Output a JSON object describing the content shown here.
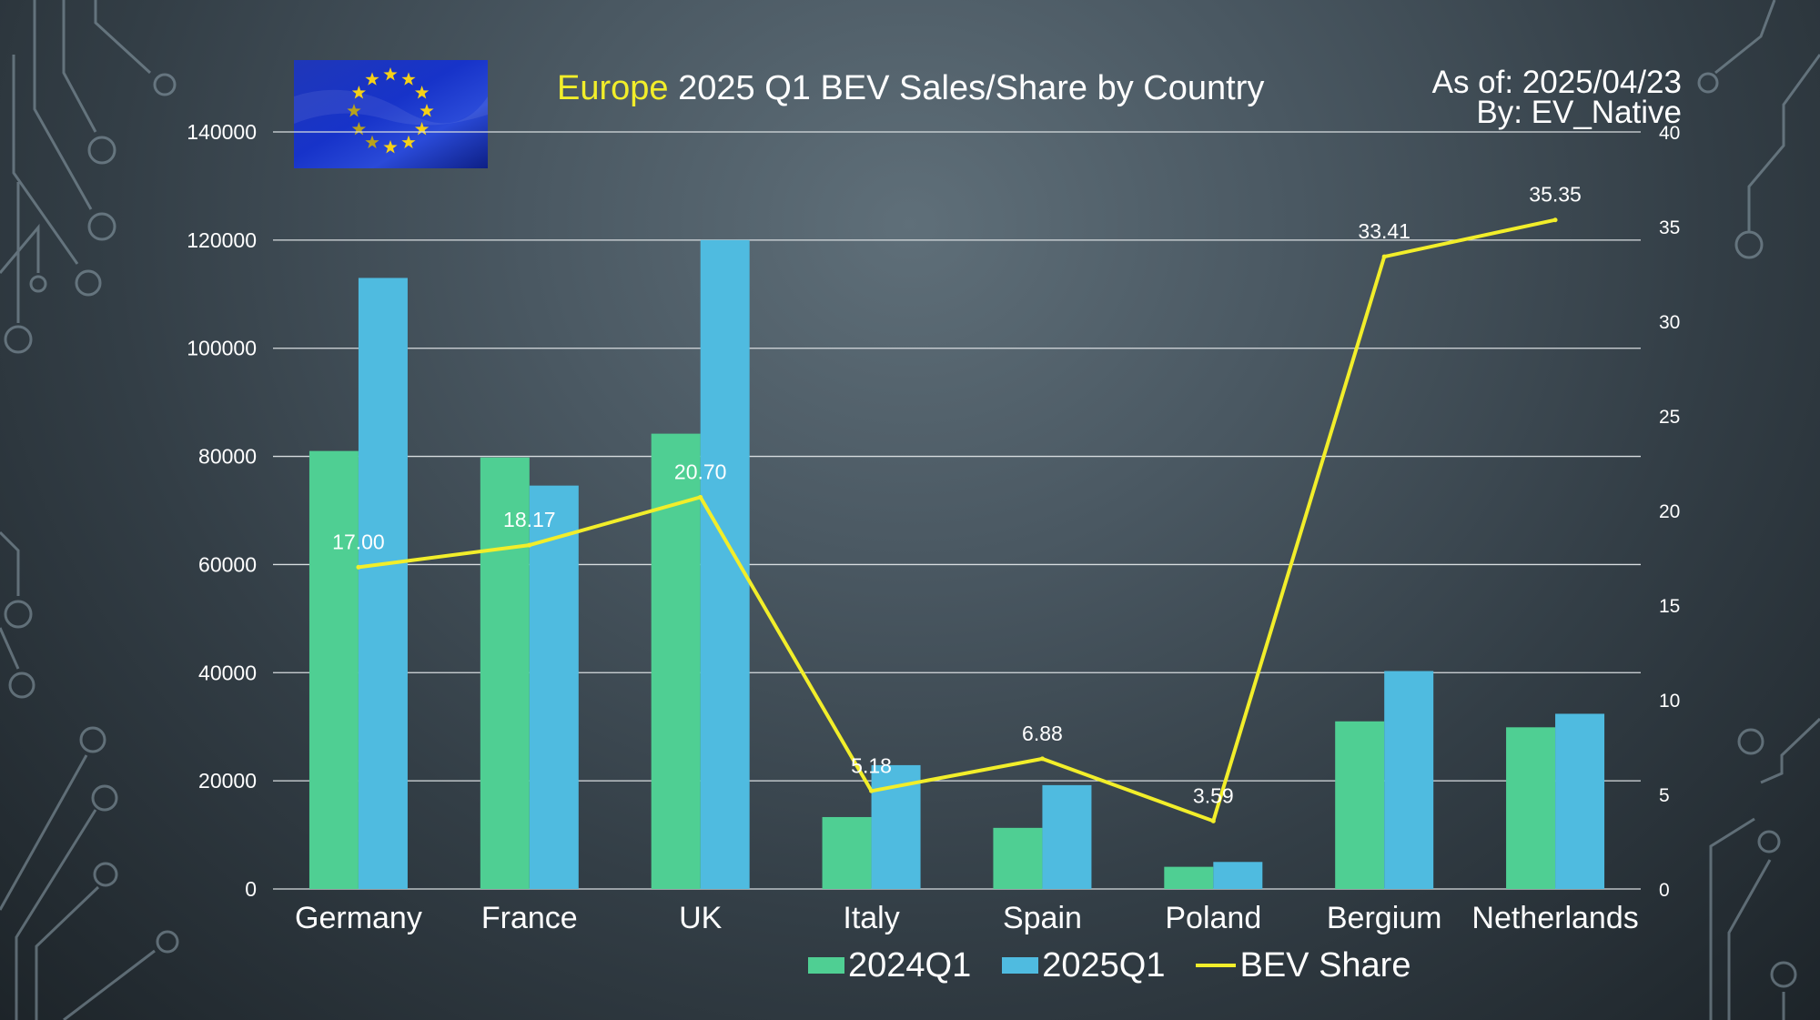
{
  "slide": {
    "title_highlight": "Europe",
    "title_rest": " 2025 Q1 BEV Sales/Share by Country",
    "as_of": "As of: 2025/04/23",
    "by": "By: EV_Native",
    "flag_icon": "eu-flag-icon"
  },
  "colors": {
    "series_2024": "#4fcf93",
    "series_2025": "#4fbbe0",
    "share_line": "#f2ee2a",
    "title_highlight": "#f2ee2a"
  },
  "chart_data": {
    "type": "bar",
    "title": "Europe 2025 Q1 BEV Sales/Share by Country",
    "categories": [
      "Germany",
      "France",
      "UK",
      "Italy",
      "Spain",
      "Poland",
      "Bergium",
      "Netherlands"
    ],
    "series": [
      {
        "name": "2024Q1",
        "type": "bar",
        "axis": "left",
        "values": [
          81000,
          79800,
          84200,
          13300,
          11300,
          4100,
          31000,
          29900
        ]
      },
      {
        "name": "2025Q1",
        "type": "bar",
        "axis": "left",
        "values": [
          113000,
          74600,
          120000,
          22900,
          19200,
          5000,
          40300,
          32400
        ]
      },
      {
        "name": "BEV Share",
        "type": "line",
        "axis": "right",
        "values": [
          17.0,
          18.17,
          20.7,
          5.18,
          6.88,
          3.59,
          33.41,
          35.35
        ],
        "labels": [
          "17.00",
          "18.17",
          "20.70",
          "5.18",
          "6.88",
          "3.59",
          "33.41",
          "35.35"
        ]
      }
    ],
    "y_left": {
      "ylim": [
        0,
        140000
      ],
      "ticks": [
        0,
        20000,
        40000,
        60000,
        80000,
        100000,
        120000,
        140000
      ],
      "tick_labels": [
        "0",
        "20000",
        "40000",
        "60000",
        "80000",
        "100000",
        "120000",
        "140000"
      ]
    },
    "y_right": {
      "ylim": [
        0,
        40
      ],
      "ticks": [
        0,
        5,
        10,
        15,
        20,
        25,
        30,
        35,
        40
      ],
      "tick_labels": [
        "0",
        "5",
        "10",
        "15",
        "20",
        "25",
        "30",
        "35",
        "40"
      ]
    },
    "grid": true,
    "legend": "bottom",
    "legend_labels": [
      "2024Q1",
      "2025Q1",
      "BEV Share"
    ]
  }
}
